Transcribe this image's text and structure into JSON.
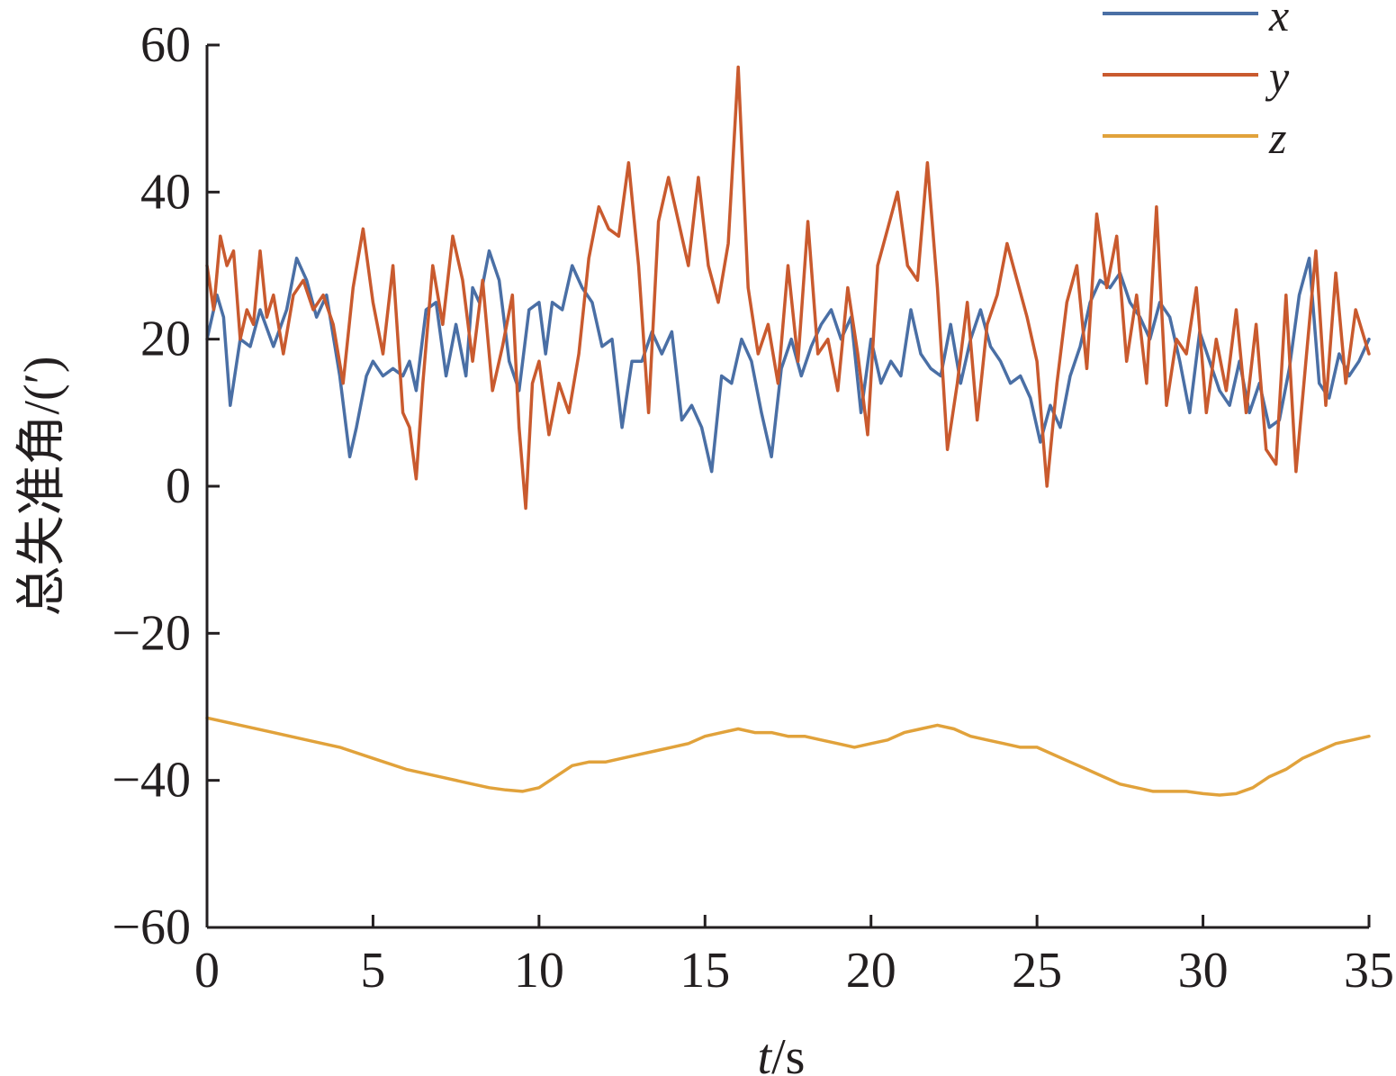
{
  "chart_data": {
    "type": "line",
    "title": "",
    "xlabel_italic": "t",
    "xlabel_unit": "/s",
    "ylabel": "总失准角/(′)",
    "xlim": [
      0,
      35
    ],
    "ylim": [
      -60,
      60
    ],
    "x_ticks": [
      0,
      5,
      10,
      15,
      20,
      25,
      30,
      35
    ],
    "x_tick_labels": [
      "0",
      "5",
      "10",
      "15",
      "20",
      "25",
      "30",
      "35"
    ],
    "y_ticks": [
      -60,
      -40,
      -20,
      0,
      20,
      40,
      60
    ],
    "y_tick_labels": [
      "−60",
      "−40",
      "−20",
      "0",
      "20",
      "40",
      "60"
    ],
    "grid": false,
    "legend_position": "top-right",
    "series": [
      {
        "name": "x",
        "color": "#4a6fa5",
        "x": [
          0,
          0.3,
          0.5,
          0.7,
          1.0,
          1.3,
          1.6,
          2.0,
          2.4,
          2.7,
          3.0,
          3.3,
          3.6,
          4.0,
          4.3,
          4.5,
          4.8,
          5.0,
          5.3,
          5.6,
          5.9,
          6.1,
          6.3,
          6.6,
          6.9,
          7.2,
          7.5,
          7.8,
          8.0,
          8.2,
          8.5,
          8.8,
          9.1,
          9.4,
          9.7,
          10.0,
          10.2,
          10.4,
          10.7,
          11.0,
          11.3,
          11.6,
          11.9,
          12.2,
          12.5,
          12.8,
          13.1,
          13.4,
          13.7,
          14.0,
          14.3,
          14.6,
          14.9,
          15.2,
          15.5,
          15.8,
          16.1,
          16.4,
          16.7,
          17.0,
          17.3,
          17.6,
          17.9,
          18.2,
          18.5,
          18.8,
          19.1,
          19.4,
          19.7,
          20.0,
          20.3,
          20.6,
          20.9,
          21.2,
          21.5,
          21.8,
          22.1,
          22.4,
          22.7,
          23.0,
          23.3,
          23.6,
          23.9,
          24.2,
          24.5,
          24.8,
          25.1,
          25.4,
          25.7,
          26.0,
          26.3,
          26.6,
          26.9,
          27.2,
          27.5,
          27.8,
          28.1,
          28.4,
          28.7,
          29.0,
          29.3,
          29.6,
          29.9,
          30.2,
          30.5,
          30.8,
          31.1,
          31.4,
          31.7,
          32.0,
          32.3,
          32.6,
          32.9,
          33.2,
          33.5,
          33.8,
          34.1,
          34.4,
          34.7,
          35.0
        ],
        "values": [
          20,
          26,
          23,
          11,
          20,
          19,
          24,
          19,
          24,
          31,
          28,
          23,
          26,
          15,
          4,
          8,
          15,
          17,
          15,
          16,
          15,
          17,
          13,
          24,
          25,
          15,
          22,
          15,
          27,
          25,
          32,
          28,
          17,
          13,
          24,
          25,
          18,
          25,
          24,
          30,
          27,
          25,
          19,
          20,
          8,
          17,
          17,
          21,
          18,
          21,
          9,
          11,
          8,
          2,
          15,
          14,
          20,
          17,
          10,
          4,
          16,
          20,
          15,
          19,
          22,
          24,
          20,
          23,
          10,
          20,
          14,
          17,
          15,
          24,
          18,
          16,
          15,
          22,
          14,
          20,
          24,
          19,
          17,
          14,
          15,
          12,
          6,
          11,
          8,
          15,
          19,
          25,
          28,
          27,
          29,
          25,
          23,
          20,
          25,
          23,
          17,
          10,
          21,
          17,
          13,
          11,
          17,
          10,
          14,
          8,
          9,
          16,
          26,
          31,
          14,
          12,
          18,
          15,
          17,
          20
        ]
      },
      {
        "name": "y",
        "color": "#c95a2e",
        "x": [
          0,
          0.2,
          0.4,
          0.6,
          0.8,
          1.0,
          1.2,
          1.4,
          1.6,
          1.8,
          2.0,
          2.3,
          2.6,
          2.9,
          3.2,
          3.5,
          3.8,
          4.1,
          4.4,
          4.7,
          5.0,
          5.3,
          5.6,
          5.9,
          6.1,
          6.3,
          6.5,
          6.8,
          7.1,
          7.4,
          7.7,
          8.0,
          8.3,
          8.6,
          8.9,
          9.2,
          9.4,
          9.6,
          9.8,
          10.0,
          10.3,
          10.6,
          10.9,
          11.2,
          11.5,
          11.8,
          12.1,
          12.4,
          12.7,
          13.0,
          13.3,
          13.6,
          13.9,
          14.2,
          14.5,
          14.8,
          15.1,
          15.4,
          15.7,
          16.0,
          16.3,
          16.6,
          16.9,
          17.2,
          17.5,
          17.8,
          18.1,
          18.4,
          18.7,
          19.0,
          19.3,
          19.6,
          19.9,
          20.2,
          20.5,
          20.8,
          21.1,
          21.4,
          21.7,
          22.0,
          22.3,
          22.6,
          22.9,
          23.2,
          23.5,
          23.8,
          24.1,
          24.4,
          24.7,
          25.0,
          25.3,
          25.6,
          25.9,
          26.2,
          26.5,
          26.8,
          27.1,
          27.4,
          27.7,
          28.0,
          28.3,
          28.6,
          28.9,
          29.2,
          29.5,
          29.8,
          30.1,
          30.4,
          30.7,
          31.0,
          31.3,
          31.6,
          31.9,
          32.2,
          32.5,
          32.8,
          33.1,
          33.4,
          33.7,
          34.0,
          34.3,
          34.6,
          35.0
        ],
        "values": [
          30,
          24,
          34,
          30,
          32,
          20,
          24,
          22,
          32,
          23,
          26,
          18,
          26,
          28,
          24,
          26,
          22,
          14,
          27,
          35,
          25,
          18,
          30,
          10,
          8,
          1,
          14,
          30,
          22,
          34,
          28,
          17,
          28,
          13,
          19,
          26,
          8,
          -3,
          14,
          17,
          7,
          14,
          10,
          18,
          31,
          38,
          35,
          34,
          44,
          30,
          10,
          36,
          42,
          36,
          30,
          42,
          30,
          25,
          33,
          57,
          27,
          18,
          22,
          14,
          30,
          17,
          36,
          18,
          20,
          13,
          27,
          18,
          7,
          30,
          35,
          40,
          30,
          28,
          44,
          27,
          5,
          14,
          25,
          9,
          22,
          26,
          33,
          28,
          23,
          17,
          0,
          14,
          25,
          30,
          16,
          37,
          27,
          34,
          17,
          26,
          14,
          38,
          11,
          20,
          18,
          27,
          10,
          20,
          13,
          24,
          10,
          22,
          5,
          3,
          26,
          2,
          17,
          32,
          11,
          29,
          14,
          24,
          18
        ]
      },
      {
        "name": "z",
        "color": "#e1a23b",
        "x": [
          0,
          1,
          2,
          3,
          4,
          5,
          6,
          7,
          8,
          8.5,
          9,
          9.5,
          10,
          10.5,
          11,
          11.5,
          12,
          12.5,
          13,
          13.5,
          14,
          14.5,
          15,
          15.5,
          16,
          16.5,
          17,
          17.5,
          18,
          18.5,
          19,
          19.5,
          20,
          20.5,
          21,
          21.5,
          22,
          22.5,
          23,
          23.5,
          24,
          24.5,
          25,
          25.5,
          26,
          26.5,
          27,
          27.5,
          28,
          28.5,
          29,
          29.5,
          30,
          30.5,
          31,
          31.5,
          32,
          32.5,
          33,
          33.5,
          34,
          34.5,
          35
        ],
        "values": [
          -31.5,
          -32.5,
          -33.5,
          -34.5,
          -35.5,
          -37,
          -38.5,
          -39.5,
          -40.5,
          -41,
          -41.3,
          -41.5,
          -41,
          -39.5,
          -38,
          -37.5,
          -37.5,
          -37,
          -36.5,
          -36,
          -35.5,
          -35,
          -34,
          -33.5,
          -33,
          -33.5,
          -33.5,
          -34,
          -34,
          -34.5,
          -35,
          -35.5,
          -35,
          -34.5,
          -33.5,
          -33,
          -32.5,
          -33,
          -34,
          -34.5,
          -35,
          -35.5,
          -35.5,
          -36.5,
          -37.5,
          -38.5,
          -39.5,
          -40.5,
          -41,
          -41.5,
          -41.5,
          -41.5,
          -41.8,
          -42,
          -41.8,
          -41,
          -39.5,
          -38.5,
          -37,
          -36,
          -35,
          -34.5,
          -34
        ]
      }
    ]
  }
}
